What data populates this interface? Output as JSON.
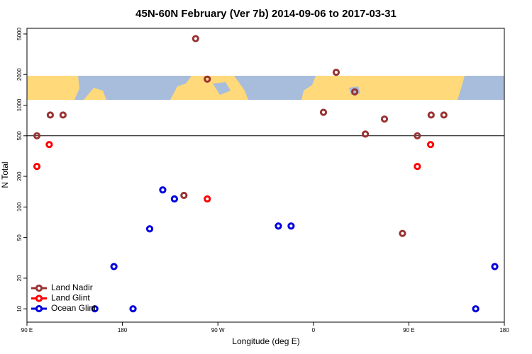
{
  "chart_data": {
    "type": "scatter",
    "title": "45N-60N February (Ver 7b)   2014-09-06 to 2017-03-31",
    "x_label": "Longitude (deg E)",
    "y_label": "N Total",
    "ylog": true,
    "xlim": [
      90,
      540
    ],
    "ylim": [
      7.4,
      5680
    ],
    "xticks": [
      {
        "value": 90,
        "label": "90 E"
      },
      {
        "value": 180,
        "label": "180"
      },
      {
        "value": 270,
        "label": "90 W"
      },
      {
        "value": 360,
        "label": "0"
      },
      {
        "value": 450,
        "label": "90 E"
      },
      {
        "value": 540,
        "label": "180"
      }
    ],
    "yticks": [
      10,
      20,
      50,
      100,
      200,
      500,
      1000,
      2000,
      5000
    ],
    "hline": 500,
    "legend": "bottom-left",
    "series": [
      {
        "name": "Land Nadir",
        "color": "#993333",
        "x": [
          99.4,
          112,
          124,
          249,
          260,
          238,
          369.5,
          381.5,
          399,
          409,
          427,
          444,
          458,
          471,
          483
        ],
        "values": [
          500,
          800,
          800,
          4500,
          1800,
          130,
          850,
          2100,
          1350,
          520,
          730,
          55,
          500,
          800,
          800
        ]
      },
      {
        "name": "Land Glint",
        "color": "#ff0000",
        "x": [
          99.4,
          111,
          260,
          458,
          470.5
        ],
        "values": [
          250,
          410,
          120,
          250,
          410
        ]
      },
      {
        "name": "Ocean Glint",
        "color": "#0000dd",
        "x": [
          154,
          172,
          190,
          205.7,
          218,
          229,
          327,
          339,
          513,
          531
        ],
        "values": [
          10,
          26,
          10,
          61,
          147,
          120,
          65,
          65,
          10,
          26
        ]
      }
    ]
  }
}
